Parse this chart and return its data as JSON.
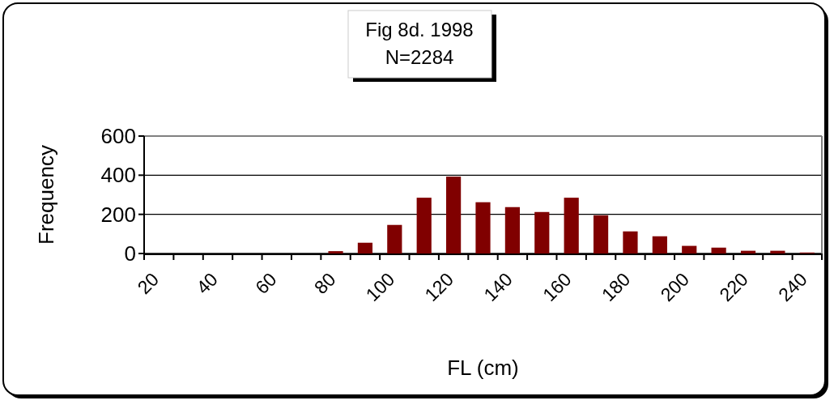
{
  "chart_data": {
    "type": "bar",
    "title": "Fig 8d. 1998",
    "subtitle": "N=2284",
    "xlabel": "FL (cm)",
    "ylabel": "Frequency",
    "categories": [
      "20",
      null,
      "40",
      null,
      "60",
      null,
      "80",
      null,
      "100",
      null,
      "120",
      null,
      "140",
      null,
      "160",
      null,
      "180",
      null,
      "200",
      null,
      "220",
      null,
      "240"
    ],
    "values": [
      0,
      0,
      0,
      0,
      0,
      0,
      12,
      55,
      146,
      285,
      393,
      262,
      237,
      212,
      285,
      195,
      113,
      88,
      39,
      30,
      14,
      14,
      5
    ],
    "color": "#800000",
    "ylim": [
      0,
      600
    ],
    "yticks": [
      0,
      200,
      400,
      600
    ],
    "grid": "y"
  }
}
